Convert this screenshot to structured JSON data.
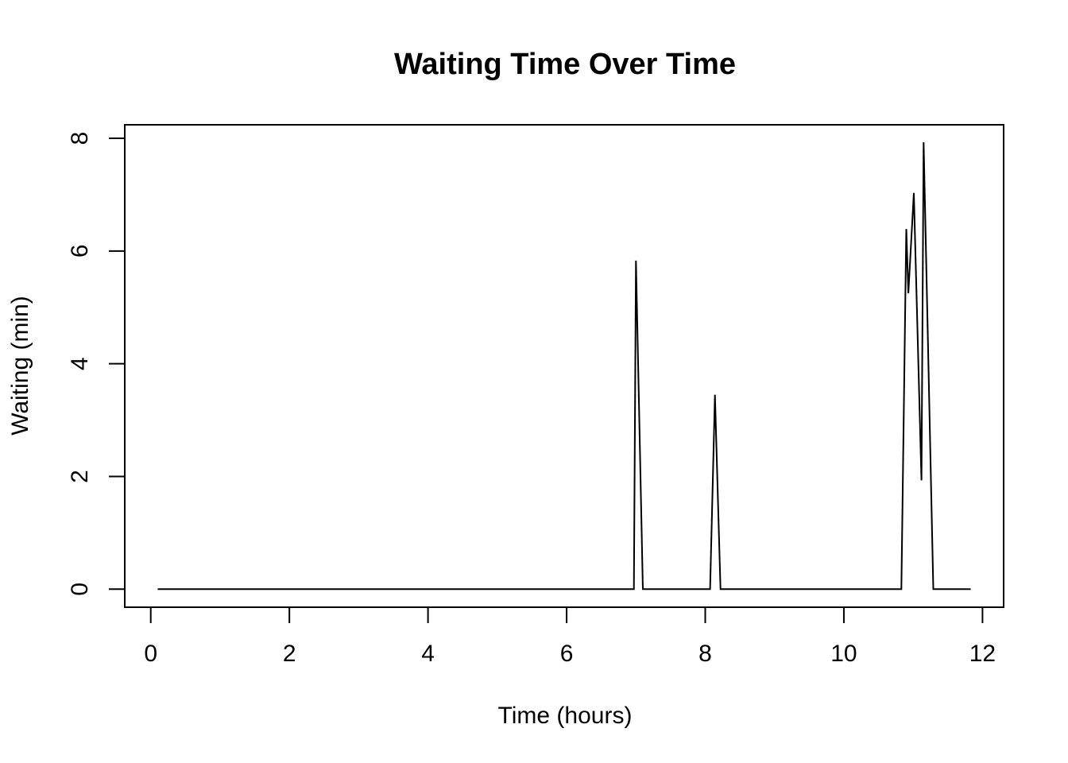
{
  "chart_data": {
    "type": "line",
    "title": "Waiting Time Over Time",
    "xlabel": "Time (hours)",
    "ylabel": "Waiting (min)",
    "xlim": [
      -0.375,
      12.305
    ],
    "ylim": [
      -0.32,
      8.24
    ],
    "xticks": [
      0,
      2,
      4,
      6,
      8,
      10,
      12
    ],
    "yticks": [
      0,
      2,
      4,
      6,
      8
    ],
    "grid": false,
    "legend": "none",
    "line_color": "#000000",
    "series": [
      {
        "x": [
          0.1,
          6.97,
          7.0,
          7.1,
          8.07,
          8.14,
          8.22,
          10.83,
          10.9,
          10.93,
          11.01,
          11.12,
          11.15,
          11.29,
          11.83
        ],
        "values": [
          0,
          0,
          5.83,
          0,
          0,
          3.45,
          0,
          0,
          6.39,
          5.25,
          7.03,
          1.93,
          7.93,
          0,
          0
        ]
      }
    ]
  }
}
